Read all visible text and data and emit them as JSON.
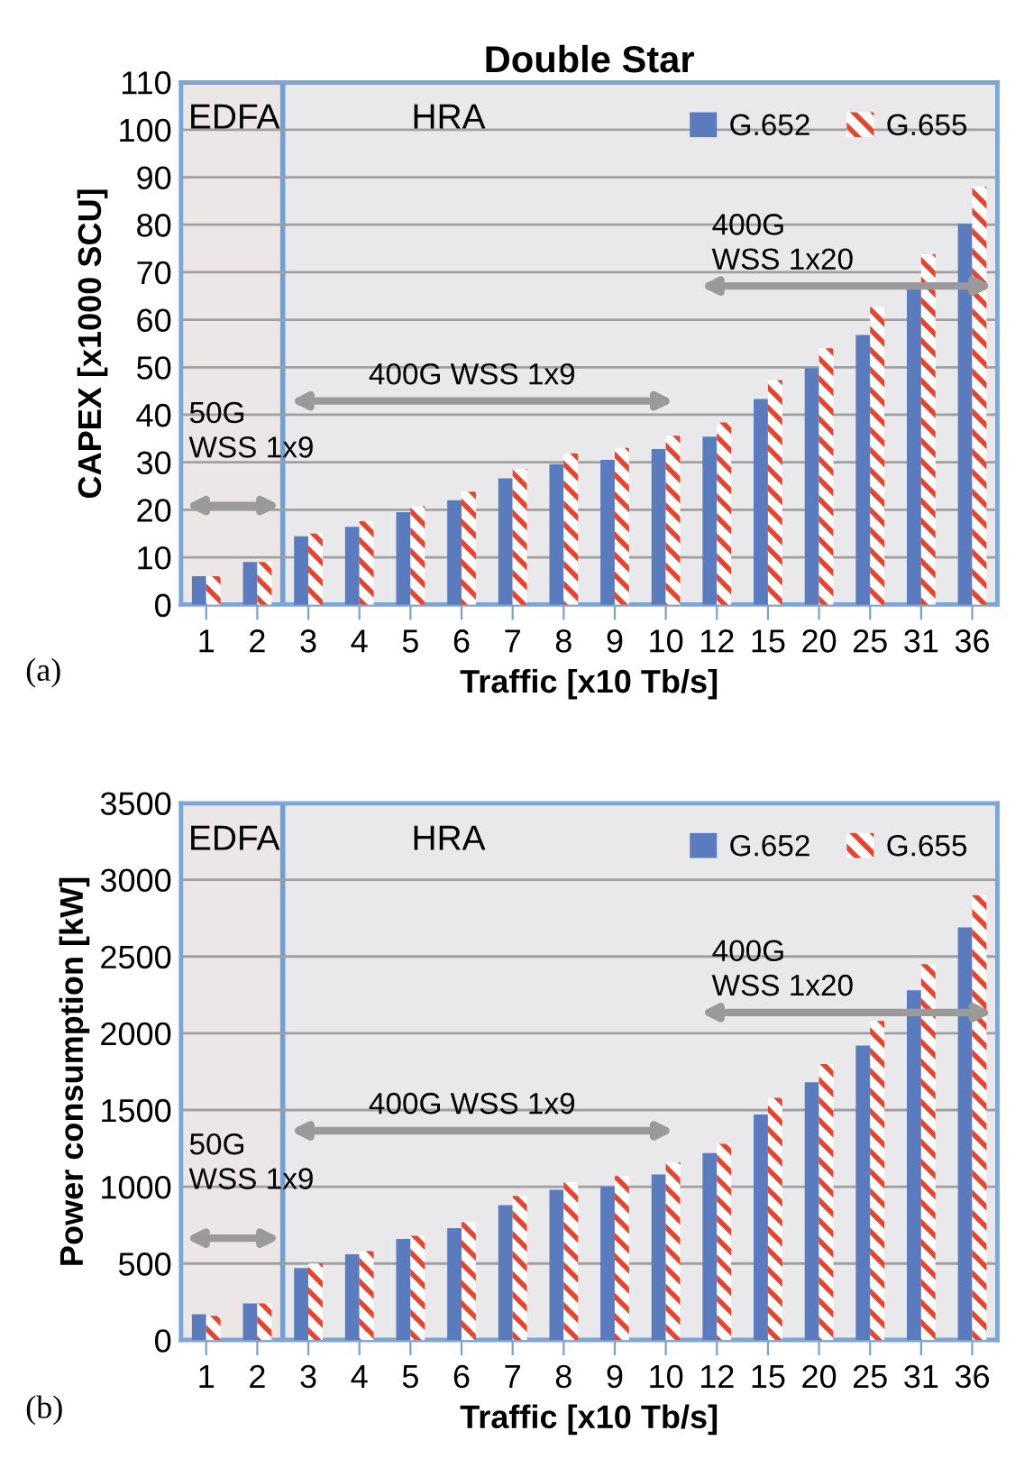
{
  "chart_data": [
    {
      "type": "bar",
      "title": "Double Star",
      "xlabel": "Traffic [x10 Tb/s]",
      "ylabel": "CAPEX [x1000 SCU]",
      "categories": [
        "1",
        "2",
        "3",
        "4",
        "5",
        "6",
        "7",
        "8",
        "9",
        "10",
        "12",
        "15",
        "20",
        "25",
        "31",
        "36"
      ],
      "series": [
        {
          "name": "G.652",
          "color": "#5b7bbf",
          "values": [
            6,
            9,
            14.4,
            16.4,
            19.5,
            22,
            26.6,
            29.6,
            30.5,
            32.8,
            35.4,
            43.3,
            49.8,
            56.8,
            67.6,
            80.2
          ]
        },
        {
          "name": "G.655",
          "color": "#e8432c",
          "values": [
            6,
            9,
            15,
            17.6,
            20.8,
            23.8,
            28.6,
            31.9,
            33,
            35.6,
            38.4,
            47.3,
            54,
            62.7,
            73.8,
            88
          ]
        }
      ],
      "ylim": [
        0,
        110
      ],
      "yticks": [
        0,
        10,
        20,
        30,
        40,
        50,
        60,
        70,
        80,
        90,
        100,
        110
      ],
      "grid": "y",
      "legend": "top right",
      "bands": [
        {
          "axis": "x",
          "from": "1",
          "to": "2",
          "label": "EDFA",
          "color": "#ece6e6"
        },
        {
          "axis": "x",
          "from": "3",
          "to": "36",
          "label": "HRA",
          "color": "#e9e9eb"
        }
      ],
      "annotations": [
        "50G\nWSS 1x9",
        "400G WSS 1x9",
        "400G\nWSS 1x20",
        "(a)"
      ]
    },
    {
      "type": "bar",
      "xlabel": "Traffic [x10 Tb/s]",
      "ylabel": "Power consumption [kW]",
      "categories": [
        "1",
        "2",
        "3",
        "4",
        "5",
        "6",
        "7",
        "8",
        "9",
        "10",
        "12",
        "15",
        "20",
        "25",
        "31",
        "36"
      ],
      "series": [
        {
          "name": "G.652",
          "color": "#5b7bbf",
          "values": [
            170,
            240,
            470,
            560,
            660,
            730,
            880,
            980,
            1000,
            1080,
            1220,
            1470,
            1680,
            1920,
            2280,
            2690
          ]
        },
        {
          "name": "G.655",
          "color": "#e8432c",
          "values": [
            160,
            240,
            500,
            580,
            680,
            770,
            940,
            1030,
            1070,
            1160,
            1280,
            1580,
            1800,
            2080,
            2450,
            2900
          ]
        }
      ],
      "ylim": [
        0,
        3500
      ],
      "yticks": [
        0,
        500,
        1000,
        1500,
        2000,
        2500,
        3000,
        3500
      ],
      "grid": "y",
      "legend": "top right",
      "bands": [
        {
          "axis": "x",
          "from": "1",
          "to": "2",
          "label": "EDFA",
          "color": "#ece6e6"
        },
        {
          "axis": "x",
          "from": "3",
          "to": "36",
          "label": "HRA",
          "color": "#e9e9eb"
        }
      ],
      "annotations": [
        "50G\nWSS 1x9",
        "400G WSS 1x9",
        "400G\nWSS 1x20",
        "(b)"
      ]
    }
  ]
}
